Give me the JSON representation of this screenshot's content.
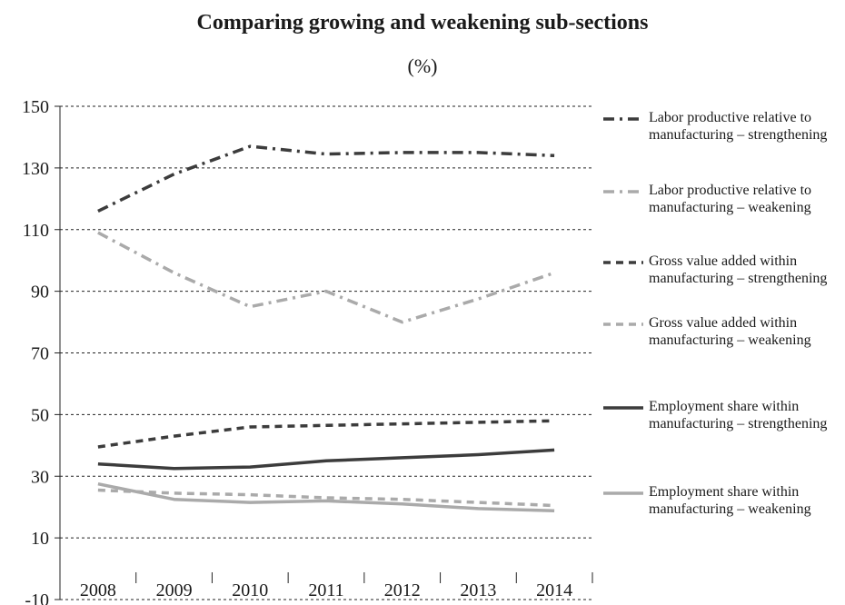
{
  "chart_data": {
    "type": "line",
    "title": "Comparing growing and weakening sub-sections",
    "unit_label": "(%)",
    "categories": [
      "2008",
      "2009",
      "2010",
      "2011",
      "2012",
      "2013",
      "2014"
    ],
    "ylim": [
      -10,
      150
    ],
    "yticks": [
      -10,
      10,
      30,
      50,
      70,
      90,
      110,
      130,
      150
    ],
    "grid": "horizontal dashed",
    "legend_position": "right",
    "series": [
      {
        "name": "Labor productive relative to manufacturing – strengthening",
        "values": [
          116,
          128,
          137,
          134.5,
          135,
          135,
          134
        ],
        "color": "#3c3c3c",
        "style": "dashdot",
        "width": 3.5
      },
      {
        "name": "Labor productive relative to manufacturing – weakening",
        "values": [
          109,
          96,
          85,
          90,
          80,
          87.5,
          96
        ],
        "color": "#aaaaaa",
        "style": "dashdot",
        "width": 3.5
      },
      {
        "name": "Gross value added within manufacturing – strengthening",
        "values": [
          39.5,
          43,
          46,
          46.5,
          47,
          47.5,
          48
        ],
        "color": "#3c3c3c",
        "style": "dashed",
        "width": 3.5
      },
      {
        "name": "Gross value added within manufacturing – weakening",
        "values": [
          25.5,
          24.5,
          24,
          23,
          22.5,
          21.5,
          20.5
        ],
        "color": "#aaaaaa",
        "style": "dashed",
        "width": 3.5
      },
      {
        "name": "Employment share within manufacturing – strengthening",
        "values": [
          34,
          32.5,
          33,
          35,
          36,
          37,
          38.5
        ],
        "color": "#3c3c3c",
        "style": "solid",
        "width": 3.5
      },
      {
        "name": "Employment share within manufacturing – weakening",
        "values": [
          27.5,
          22.5,
          21.5,
          22,
          21,
          19.5,
          18.8
        ],
        "color": "#aaaaaa",
        "style": "solid",
        "width": 3.5
      }
    ]
  }
}
